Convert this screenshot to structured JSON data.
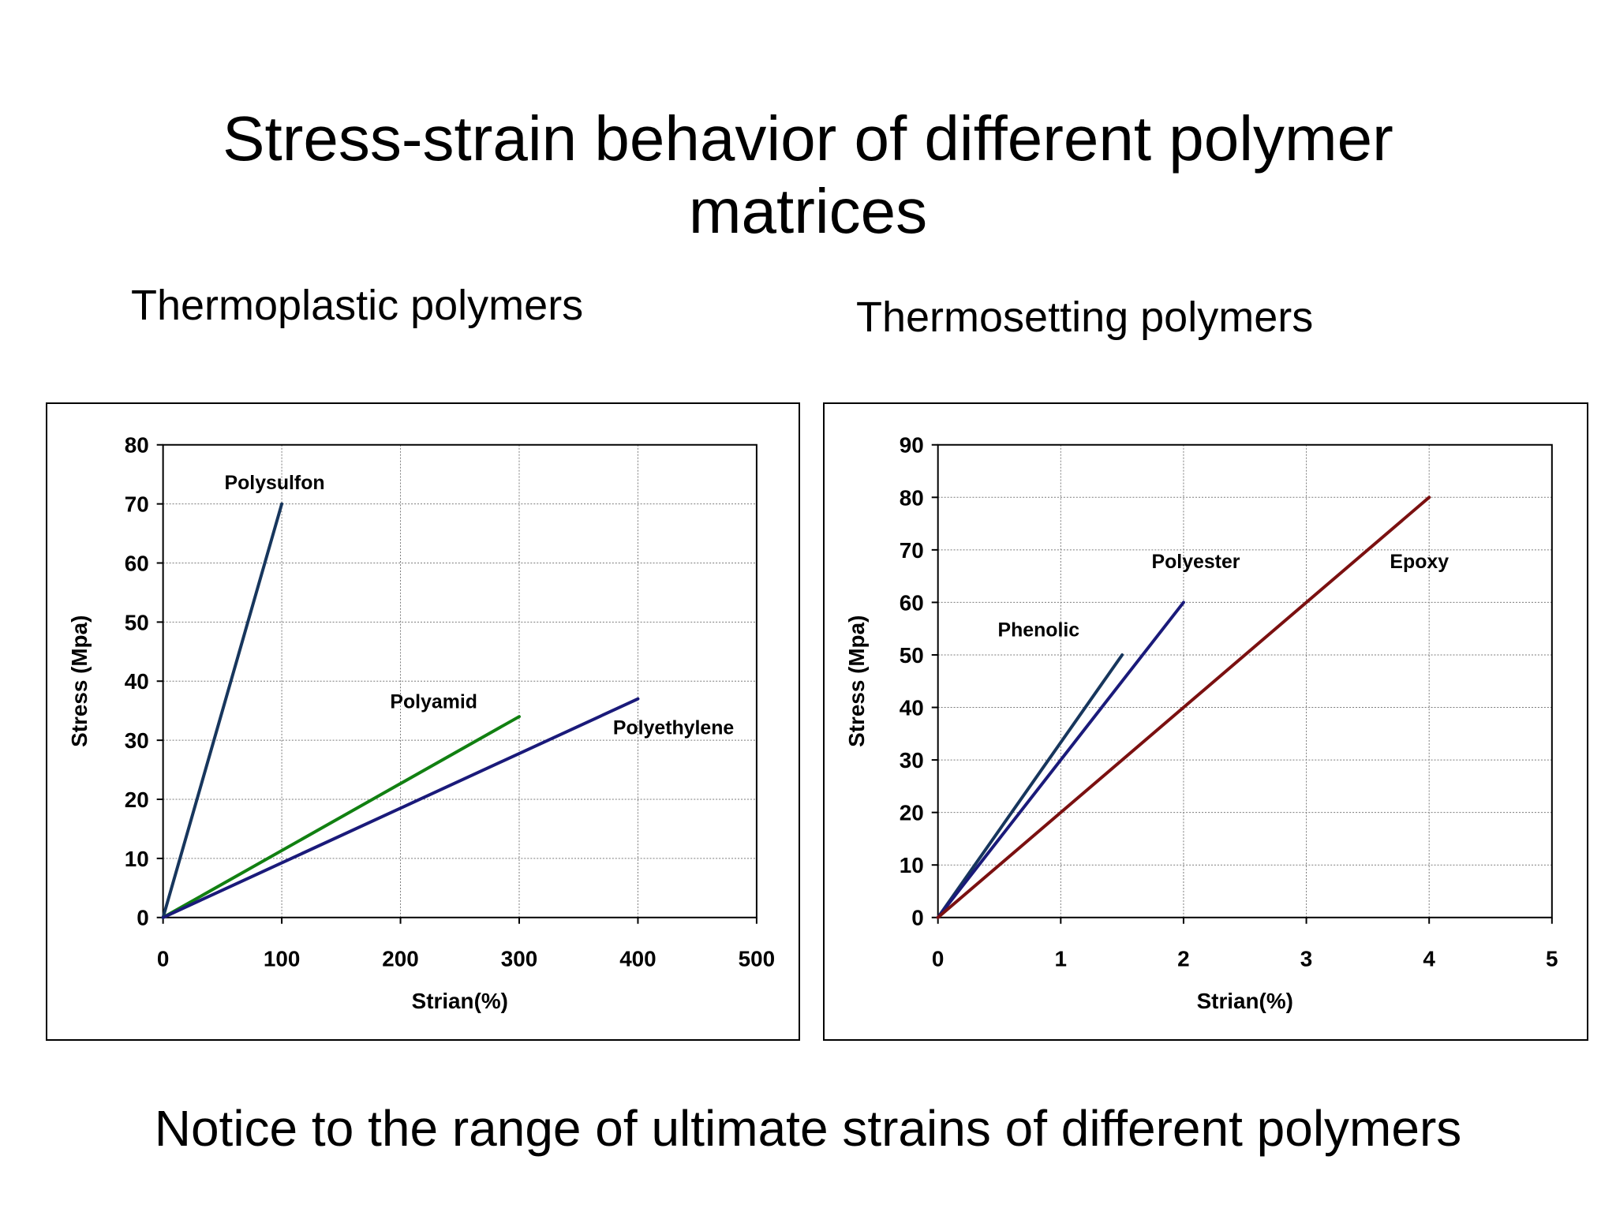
{
  "slide": {
    "title_line1": "Stress-strain behavior of different polymer",
    "title_line2": "matrices",
    "subtitle_left": "Thermoplastic polymers",
    "subtitle_right": "Thermosetting polymers",
    "footer": "Notice to the range of ultimate strains of different polymers"
  },
  "chart_data": [
    {
      "type": "line",
      "title": "",
      "xlabel": "Strian(%)",
      "ylabel": "Stress (Mpa)",
      "xlim": [
        0,
        500
      ],
      "ylim": [
        0,
        80
      ],
      "xticks": [
        0,
        100,
        200,
        300,
        400,
        500
      ],
      "yticks": [
        0,
        10,
        20,
        30,
        40,
        50,
        60,
        70,
        80
      ],
      "grid": true,
      "series": [
        {
          "name": "Polysulfon",
          "color": "#17365d",
          "x": [
            0,
            100
          ],
          "y": [
            0,
            70
          ],
          "label_anchor": [
            94,
            72.5
          ]
        },
        {
          "name": "Polyamid",
          "color": "#118011",
          "x": [
            0,
            300
          ],
          "y": [
            0,
            34
          ],
          "label_anchor": [
            228,
            35.4
          ]
        },
        {
          "name": "Polyethylene",
          "color": "#1a1a7a",
          "x": [
            0,
            400
          ],
          "y": [
            0,
            37
          ],
          "label_anchor": [
            430,
            31
          ]
        }
      ]
    },
    {
      "type": "line",
      "title": "",
      "xlabel": "Strian(%)",
      "ylabel": "Stress (Mpa)",
      "xlim": [
        0,
        5
      ],
      "ylim": [
        0,
        90
      ],
      "xticks": [
        0,
        1,
        2,
        3,
        4,
        5
      ],
      "yticks": [
        0,
        10,
        20,
        30,
        40,
        50,
        60,
        70,
        80,
        90
      ],
      "grid": true,
      "series": [
        {
          "name": "Phenolic",
          "color": "#17365d",
          "x": [
            0,
            1.5
          ],
          "y": [
            0,
            50
          ],
          "label_anchor": [
            0.82,
            53.5
          ]
        },
        {
          "name": "Polyester",
          "color": "#1a1a7a",
          "x": [
            0,
            2
          ],
          "y": [
            0,
            60
          ],
          "label_anchor": [
            2.1,
            66.5
          ]
        },
        {
          "name": "Epoxy",
          "color": "#7b1010",
          "x": [
            0,
            4
          ],
          "y": [
            0,
            80
          ],
          "label_anchor": [
            3.92,
            66.5
          ]
        }
      ]
    }
  ]
}
